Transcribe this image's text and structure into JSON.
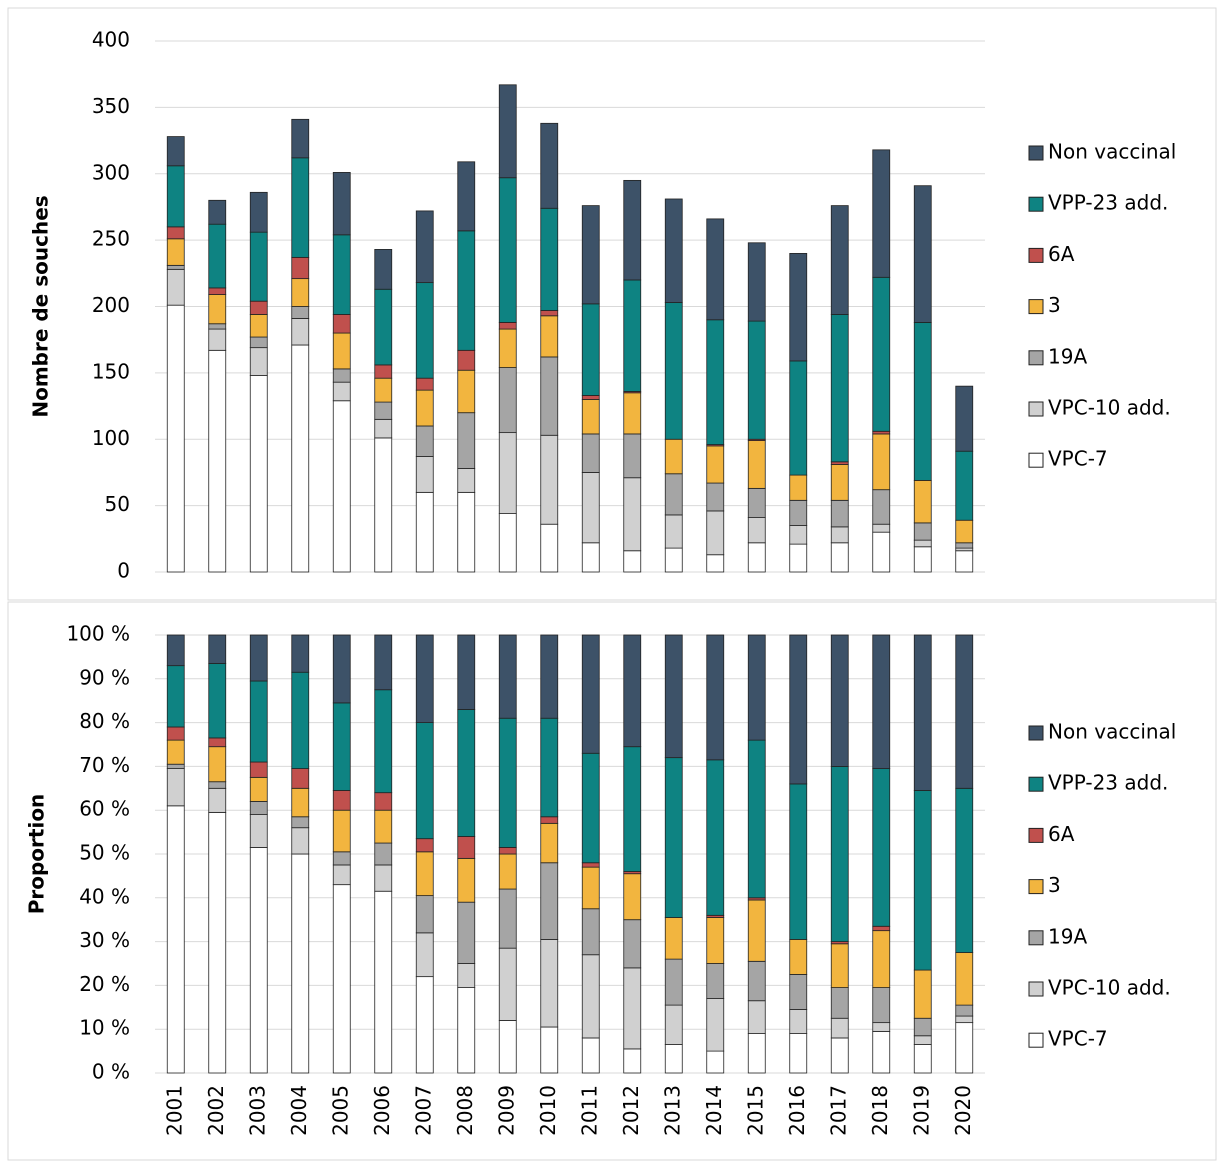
{
  "chart_data": [
    {
      "type": "stacked_bar",
      "ylabel": "Nombre de souches",
      "ylim": [
        0,
        400
      ],
      "yticks": [
        0,
        50,
        100,
        150,
        200,
        250,
        300,
        350,
        400
      ],
      "grid": true,
      "legend": "right",
      "series": [
        {
          "name": "VPC-7",
          "color": "#ffffff",
          "values": [
            201,
            167,
            148,
            171,
            129,
            101,
            60,
            60,
            44,
            36,
            22,
            16,
            18,
            13,
            22,
            21,
            22,
            30,
            19,
            16
          ]
        },
        {
          "name": "VPC-10 add.",
          "color": "#d0d0d0",
          "values": [
            27,
            16,
            21,
            20,
            14,
            14,
            27,
            18,
            61,
            67,
            53,
            55,
            25,
            33,
            19,
            14,
            12,
            6,
            5,
            2
          ]
        },
        {
          "name": "19A",
          "color": "#a5a5a5",
          "values": [
            3,
            4,
            8,
            9,
            10,
            13,
            23,
            42,
            49,
            59,
            29,
            33,
            31,
            21,
            22,
            19,
            20,
            26,
            13,
            4
          ]
        },
        {
          "name": "3",
          "color": "#f2b53f",
          "values": [
            20,
            22,
            17,
            21,
            27,
            18,
            27,
            32,
            29,
            31,
            26,
            31,
            26,
            28,
            36,
            19,
            27,
            42,
            32,
            17
          ]
        },
        {
          "name": "6A",
          "color": "#c0504d",
          "values": [
            9,
            5,
            10,
            16,
            14,
            10,
            9,
            15,
            5,
            4,
            3,
            1,
            0,
            1,
            1,
            0,
            2,
            2,
            0,
            0
          ]
        },
        {
          "name": "VPP-23 add.",
          "color": "#0e8382",
          "values": [
            46,
            48,
            52,
            75,
            60,
            57,
            72,
            90,
            109,
            77,
            69,
            84,
            103,
            94,
            89,
            86,
            111,
            116,
            119,
            52
          ]
        },
        {
          "name": "Non vaccinal",
          "color": "#3d5268",
          "values": [
            22,
            18,
            30,
            29,
            47,
            30,
            54,
            52,
            70,
            64,
            74,
            75,
            78,
            76,
            59,
            81,
            82,
            96,
            103,
            49
          ]
        }
      ]
    },
    {
      "type": "stacked_bar",
      "ylabel": "Proportion",
      "ylim": [
        0,
        100
      ],
      "grid": true,
      "legend": "right",
      "yticks": [
        {
          "value": 0,
          "label": "0 %"
        },
        {
          "value": 10,
          "label": "10 %"
        },
        {
          "value": 20,
          "label": "20 %"
        },
        {
          "value": 30,
          "label": "30 %"
        },
        {
          "value": 40,
          "label": "40 %"
        },
        {
          "value": 50,
          "label": "50 %"
        },
        {
          "value": 60,
          "label": "60 %"
        },
        {
          "value": 70,
          "label": "70 %"
        },
        {
          "value": 80,
          "label": "80 %"
        },
        {
          "value": 90,
          "label": "90 %"
        },
        {
          "value": 100,
          "label": "100 %"
        }
      ],
      "categories": [
        "2001",
        "2002",
        "2003",
        "2004",
        "2005",
        "2006",
        "2007",
        "2008",
        "2009",
        "2010",
        "2011",
        "2012",
        "2013",
        "2014",
        "2015",
        "2016",
        "2017",
        "2018",
        "2019",
        "2020"
      ],
      "series": [
        {
          "name": "VPC-7",
          "color": "#ffffff",
          "values": [
            61,
            59.5,
            51.5,
            50,
            43,
            41.5,
            22,
            19.5,
            12,
            10.5,
            8,
            5.5,
            6.5,
            5,
            9,
            9,
            8,
            9.5,
            6.5,
            11.5
          ]
        },
        {
          "name": "VPC-10 add.",
          "color": "#d0d0d0",
          "values": [
            8.5,
            5.5,
            7.5,
            6,
            4.5,
            6,
            10,
            5.5,
            16.5,
            20,
            19,
            18.5,
            9,
            12,
            7.5,
            5.5,
            4.5,
            2,
            2,
            1.5
          ]
        },
        {
          "name": "19A",
          "color": "#a5a5a5",
          "values": [
            1,
            1.5,
            3,
            2.5,
            3,
            5,
            8.5,
            14,
            13.5,
            17.5,
            10.5,
            11,
            10.5,
            8,
            9,
            8,
            7,
            8,
            4,
            2.5
          ]
        },
        {
          "name": "3",
          "color": "#f2b53f",
          "values": [
            5.5,
            8,
            5.5,
            6.5,
            9.5,
            7.5,
            10,
            10,
            8,
            9,
            9.5,
            10.5,
            9.5,
            10.5,
            14,
            8,
            10,
            13,
            11,
            12
          ]
        },
        {
          "name": "6A",
          "color": "#c0504d",
          "values": [
            3,
            2,
            3.5,
            4.5,
            4.5,
            4,
            3,
            5,
            1.5,
            1.5,
            1,
            0.5,
            0,
            0.5,
            0.5,
            0,
            0.5,
            1,
            0,
            0
          ]
        },
        {
          "name": "VPP-23 add.",
          "color": "#0e8382",
          "values": [
            14,
            17,
            18.5,
            22,
            20,
            23.5,
            26.5,
            29,
            29.5,
            22.5,
            25,
            28.5,
            36.5,
            35.5,
            36,
            35.5,
            40,
            36,
            41,
            37.5
          ]
        },
        {
          "name": "Non vaccinal",
          "color": "#3d5268",
          "values": [
            7,
            6.5,
            10.5,
            8.5,
            15.5,
            12.5,
            20,
            17,
            19,
            19,
            27,
            25.5,
            28,
            28.5,
            24,
            34,
            30,
            30.5,
            35.5,
            35
          ]
        }
      ]
    }
  ]
}
